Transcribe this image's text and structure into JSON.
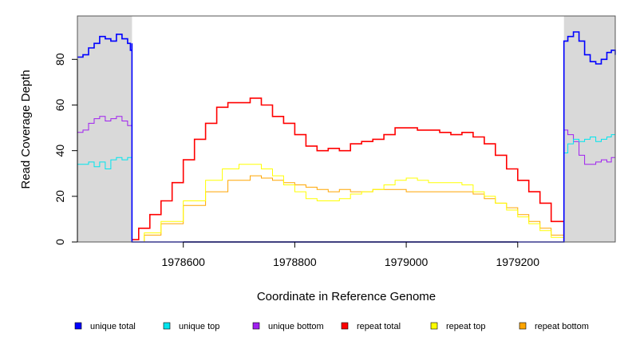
{
  "chart_data": {
    "type": "line",
    "xlabel": "Coordinate in Reference Genome",
    "ylabel": "Read Coverage Depth",
    "xlim": [
      1978410,
      1979375
    ],
    "ylim": [
      0,
      99
    ],
    "x_ticks": [
      1978600,
      1978800,
      1979000,
      1979200
    ],
    "x_tick_labels": [
      "1978600",
      "1978800",
      "1979000",
      "1979200"
    ],
    "y_ticks": [
      0,
      20,
      40,
      60,
      80
    ],
    "y_tick_labels": [
      "0",
      "20",
      "40",
      "60",
      "80"
    ],
    "shaded_regions": [
      [
        1978410,
        1978508
      ],
      [
        1979283,
        1979375
      ]
    ],
    "legend_position": "bottom",
    "series": [
      {
        "name": "unique total",
        "color": "#0000ff",
        "points": [
          [
            1978410,
            81
          ],
          [
            1978420,
            82
          ],
          [
            1978430,
            85
          ],
          [
            1978440,
            87
          ],
          [
            1978450,
            90
          ],
          [
            1978460,
            89
          ],
          [
            1978470,
            88
          ],
          [
            1978480,
            91
          ],
          [
            1978490,
            89
          ],
          [
            1978500,
            87
          ],
          [
            1978505,
            84
          ],
          [
            1978508,
            87
          ],
          [
            1978508,
            0
          ],
          [
            1979283,
            0
          ],
          [
            1979283,
            88
          ],
          [
            1979290,
            90
          ],
          [
            1979300,
            92
          ],
          [
            1979310,
            88
          ],
          [
            1979320,
            82
          ],
          [
            1979330,
            79
          ],
          [
            1979340,
            78
          ],
          [
            1979350,
            80
          ],
          [
            1979360,
            83
          ],
          [
            1979368,
            84
          ],
          [
            1979375,
            82
          ]
        ]
      },
      {
        "name": "unique top",
        "color": "#00e5ee",
        "points": [
          [
            1978410,
            34
          ],
          [
            1978420,
            34
          ],
          [
            1978430,
            35
          ],
          [
            1978440,
            33
          ],
          [
            1978450,
            35
          ],
          [
            1978460,
            32
          ],
          [
            1978470,
            36
          ],
          [
            1978480,
            37
          ],
          [
            1978490,
            36
          ],
          [
            1978500,
            37
          ],
          [
            1978508,
            37
          ],
          [
            1978508,
            0
          ],
          [
            1979283,
            0
          ],
          [
            1979283,
            39
          ],
          [
            1979290,
            43
          ],
          [
            1979300,
            45
          ],
          [
            1979310,
            44
          ],
          [
            1979320,
            45
          ],
          [
            1979330,
            46
          ],
          [
            1979340,
            44
          ],
          [
            1979350,
            45
          ],
          [
            1979360,
            46
          ],
          [
            1979368,
            47
          ],
          [
            1979375,
            46
          ]
        ]
      },
      {
        "name": "unique bottom",
        "color": "#a020f0",
        "points": [
          [
            1978410,
            48
          ],
          [
            1978420,
            49
          ],
          [
            1978430,
            52
          ],
          [
            1978440,
            54
          ],
          [
            1978450,
            55
          ],
          [
            1978460,
            53
          ],
          [
            1978470,
            54
          ],
          [
            1978480,
            55
          ],
          [
            1978490,
            53
          ],
          [
            1978500,
            51
          ],
          [
            1978508,
            50
          ],
          [
            1978508,
            0
          ],
          [
            1979283,
            0
          ],
          [
            1979283,
            49
          ],
          [
            1979290,
            47
          ],
          [
            1979300,
            44
          ],
          [
            1979310,
            38
          ],
          [
            1979320,
            34
          ],
          [
            1979330,
            34
          ],
          [
            1979340,
            35
          ],
          [
            1979350,
            36
          ],
          [
            1979360,
            35
          ],
          [
            1979368,
            37
          ],
          [
            1979375,
            36
          ]
        ]
      },
      {
        "name": "repeat total",
        "color": "#ff0000",
        "points": [
          [
            1978508,
            1
          ],
          [
            1978520,
            6
          ],
          [
            1978540,
            12
          ],
          [
            1978560,
            18
          ],
          [
            1978580,
            26
          ],
          [
            1978600,
            36
          ],
          [
            1978620,
            45
          ],
          [
            1978640,
            52
          ],
          [
            1978660,
            59
          ],
          [
            1978680,
            61
          ],
          [
            1978700,
            61
          ],
          [
            1978720,
            63
          ],
          [
            1978740,
            60
          ],
          [
            1978760,
            55
          ],
          [
            1978780,
            52
          ],
          [
            1978800,
            47
          ],
          [
            1978820,
            42
          ],
          [
            1978840,
            40
          ],
          [
            1978860,
            41
          ],
          [
            1978880,
            40
          ],
          [
            1978900,
            43
          ],
          [
            1978920,
            44
          ],
          [
            1978940,
            45
          ],
          [
            1978960,
            47
          ],
          [
            1978980,
            50
          ],
          [
            1979000,
            50
          ],
          [
            1979020,
            49
          ],
          [
            1979040,
            49
          ],
          [
            1979060,
            48
          ],
          [
            1979080,
            47
          ],
          [
            1979100,
            48
          ],
          [
            1979120,
            46
          ],
          [
            1979140,
            43
          ],
          [
            1979160,
            38
          ],
          [
            1979180,
            32
          ],
          [
            1979200,
            27
          ],
          [
            1979220,
            22
          ],
          [
            1979240,
            17
          ],
          [
            1979260,
            9
          ],
          [
            1979283,
            0
          ]
        ]
      },
      {
        "name": "repeat top",
        "color": "#ffff00",
        "points": [
          [
            1978508,
            0
          ],
          [
            1978530,
            4
          ],
          [
            1978560,
            9
          ],
          [
            1978600,
            18
          ],
          [
            1978640,
            27
          ],
          [
            1978670,
            32
          ],
          [
            1978700,
            34
          ],
          [
            1978720,
            34
          ],
          [
            1978740,
            32
          ],
          [
            1978760,
            29
          ],
          [
            1978780,
            25
          ],
          [
            1978800,
            22
          ],
          [
            1978820,
            19
          ],
          [
            1978840,
            18
          ],
          [
            1978860,
            18
          ],
          [
            1978880,
            19
          ],
          [
            1978900,
            21
          ],
          [
            1978920,
            22
          ],
          [
            1978940,
            23
          ],
          [
            1978960,
            25
          ],
          [
            1978980,
            27
          ],
          [
            1979000,
            28
          ],
          [
            1979020,
            27
          ],
          [
            1979040,
            26
          ],
          [
            1979060,
            26
          ],
          [
            1979080,
            26
          ],
          [
            1979100,
            25
          ],
          [
            1979120,
            22
          ],
          [
            1979140,
            20
          ],
          [
            1979160,
            17
          ],
          [
            1979180,
            14
          ],
          [
            1979200,
            11
          ],
          [
            1979220,
            8
          ],
          [
            1979240,
            5
          ],
          [
            1979260,
            2
          ],
          [
            1979283,
            0
          ]
        ]
      },
      {
        "name": "repeat bottom",
        "color": "#ffa500",
        "points": [
          [
            1978410,
            0
          ],
          [
            1978508,
            0
          ],
          [
            1978530,
            3
          ],
          [
            1978560,
            8
          ],
          [
            1978600,
            16
          ],
          [
            1978640,
            22
          ],
          [
            1978680,
            27
          ],
          [
            1978720,
            29
          ],
          [
            1978740,
            28
          ],
          [
            1978760,
            27
          ],
          [
            1978780,
            26
          ],
          [
            1978800,
            25
          ],
          [
            1978820,
            24
          ],
          [
            1978840,
            23
          ],
          [
            1978860,
            22
          ],
          [
            1978880,
            23
          ],
          [
            1978900,
            22
          ],
          [
            1978920,
            22
          ],
          [
            1978940,
            23
          ],
          [
            1978960,
            23
          ],
          [
            1978980,
            23
          ],
          [
            1979000,
            22
          ],
          [
            1979020,
            22
          ],
          [
            1979040,
            22
          ],
          [
            1979060,
            22
          ],
          [
            1979080,
            22
          ],
          [
            1979100,
            22
          ],
          [
            1979120,
            21
          ],
          [
            1979140,
            19
          ],
          [
            1979160,
            17
          ],
          [
            1979180,
            15
          ],
          [
            1979200,
            12
          ],
          [
            1979220,
            9
          ],
          [
            1979240,
            6
          ],
          [
            1979260,
            3
          ],
          [
            1979283,
            0
          ],
          [
            1979375,
            0
          ]
        ]
      }
    ]
  }
}
